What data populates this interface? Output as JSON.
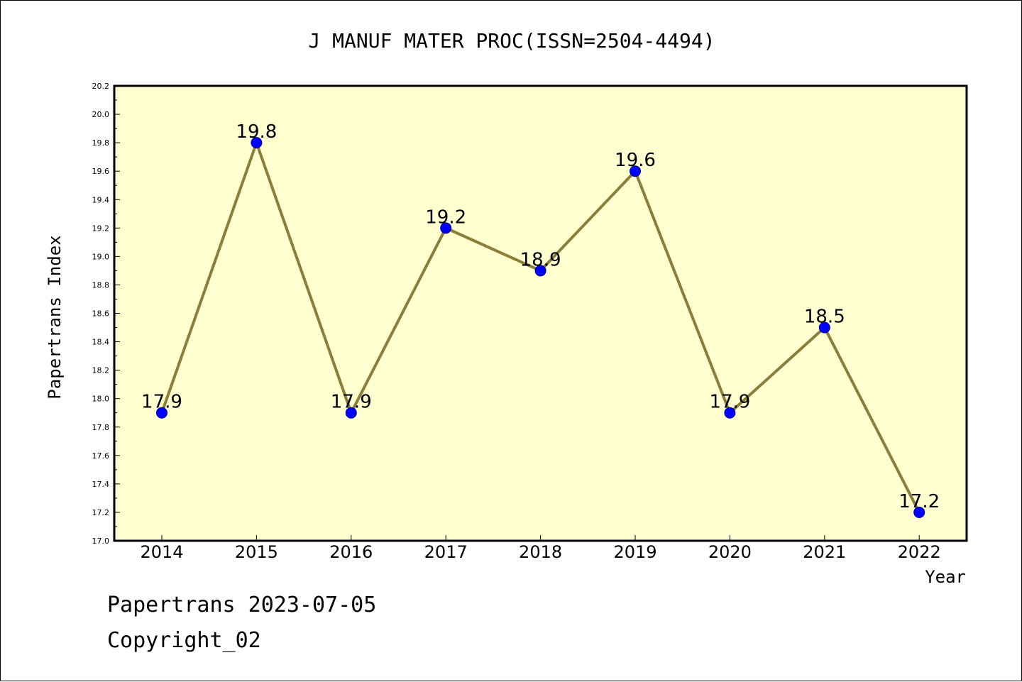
{
  "chart_data": {
    "type": "line",
    "title": "J MANUF MATER PROC(ISSN=2504-4494)",
    "xlabel": "Year",
    "ylabel": "Papertrans Index",
    "categories": [
      "2014",
      "2015",
      "2016",
      "2017",
      "2018",
      "2019",
      "2020",
      "2021",
      "2022"
    ],
    "values": [
      17.9,
      19.8,
      17.9,
      19.2,
      18.9,
      19.6,
      17.9,
      18.5,
      17.2
    ],
    "data_labels": [
      "17.9",
      "19.8",
      "17.9",
      "19.2",
      "18.9",
      "19.6",
      "17.9",
      "18.5",
      "17.2"
    ],
    "ylim": [
      17.0,
      20.2
    ],
    "yticks": [
      "17.0",
      "17.2",
      "17.4",
      "17.6",
      "17.8",
      "18.0",
      "18.2",
      "18.4",
      "18.6",
      "18.8",
      "19.0",
      "19.2",
      "19.4",
      "19.6",
      "19.8",
      "20.0",
      "20.2"
    ],
    "grid": false,
    "colors": {
      "plot_background": "#ffffd0",
      "line": "#8b7d3a",
      "marker_fill": "#0000ff",
      "marker_edge": "#00008b"
    }
  },
  "footer": {
    "line1": "Papertrans 2023-07-05",
    "line2": "Copyright_02"
  }
}
